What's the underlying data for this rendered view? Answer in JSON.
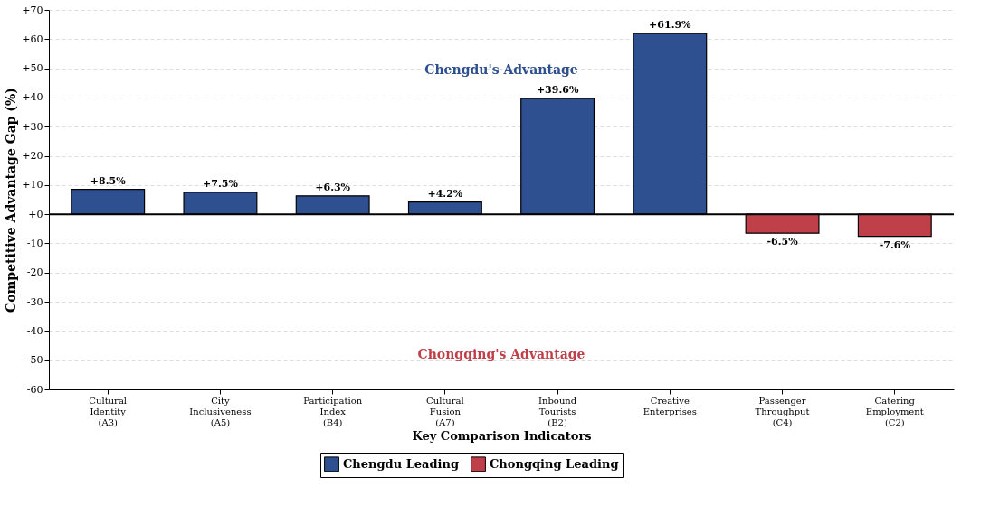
{
  "chart_data": {
    "type": "bar",
    "xlabel": "Key Comparison Indicators",
    "ylabel": "Competitive Advantage Gap (%)",
    "categories": [
      "Cultural\nIdentity\n(A3)",
      "City\nInclusiveness\n(A5)",
      "Participation\nIndex\n(B4)",
      "Cultural\nFusion\n(A7)",
      "Inbound\nTourists\n(B2)",
      "Creative\nEnterprises",
      "Passenger\nThroughput\n(C4)",
      "Catering\nEmployment\n(C2)"
    ],
    "series": [
      {
        "name": "Chengdu Leading",
        "color": "#2e5090",
        "values": [
          8.5,
          7.5,
          6.3,
          4.2,
          39.6,
          61.9,
          null,
          null
        ],
        "value_labels": [
          "+8.5%",
          "+7.5%",
          "+6.3%",
          "+4.2%",
          "+39.6%",
          "+61.9%",
          null,
          null
        ]
      },
      {
        "name": "Chongqing Leading",
        "color": "#c0404a",
        "values": [
          null,
          null,
          null,
          null,
          null,
          null,
          -6.5,
          -7.6
        ],
        "value_labels": [
          null,
          null,
          null,
          null,
          null,
          null,
          "-6.5%",
          "-7.6%"
        ]
      }
    ],
    "ylim": [
      -60,
      70
    ],
    "yticks": [
      -60,
      -50,
      -40,
      -30,
      -20,
      -10,
      {
        "value": 0,
        "label": "+0"
      },
      {
        "value": 10,
        "label": "+10"
      },
      {
        "value": 20,
        "label": "+20"
      },
      {
        "value": 30,
        "label": "+30"
      },
      {
        "value": 40,
        "label": "+40"
      },
      {
        "value": 50,
        "label": "+50"
      },
      {
        "value": 60,
        "label": "+60"
      },
      {
        "value": 70,
        "label": "+70"
      }
    ],
    "ref_lines": [
      {
        "axis": "y",
        "value": 0,
        "color": "#000000"
      }
    ],
    "annotations": [
      "Chengdu's Advantage",
      "Chongqing's Advantage"
    ],
    "grid": "y",
    "legend": "bottom"
  }
}
